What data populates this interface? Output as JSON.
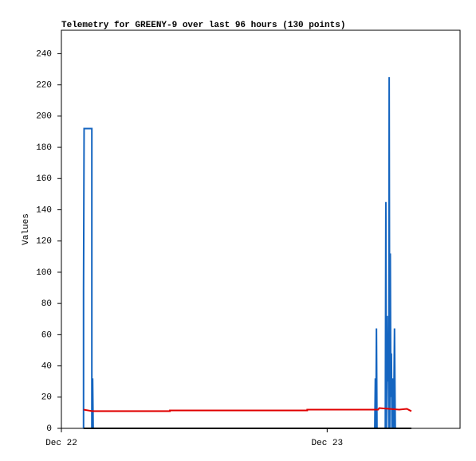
{
  "chart_data": {
    "type": "line",
    "title": "Telemetry for GREENY-9 over last 96 hours (130 points)",
    "y_label": "Values",
    "xlim": [
      0,
      36
    ],
    "xticks": [
      {
        "value": 0,
        "label": "Dec 22"
      },
      {
        "value": 24,
        "label": "Dec 23"
      }
    ],
    "ylim": [
      0,
      255
    ],
    "yticks": [
      0,
      20,
      40,
      60,
      80,
      100,
      120,
      140,
      160,
      180,
      200,
      220,
      240
    ],
    "grid": false,
    "series": [
      {
        "color": "#1565c0",
        "x": [
          2.0,
          2.0,
          2.05,
          2.75,
          2.75,
          2.82,
          2.87,
          28.3,
          28.35,
          28.4,
          28.45,
          28.5,
          29.25,
          29.3,
          29.35,
          29.42,
          29.47,
          29.52,
          29.57,
          29.6,
          29.65,
          29.7,
          29.75,
          29.8,
          29.85,
          29.9,
          29.95,
          30.0,
          30.08,
          30.15,
          30.2
        ],
        "values": [
          0,
          88,
          192,
          192,
          0,
          32,
          0,
          0,
          32,
          0,
          64,
          0,
          0,
          145,
          0,
          72,
          30,
          48,
          0,
          225,
          0,
          112,
          20,
          48,
          0,
          24,
          32,
          0,
          64,
          0,
          0
        ]
      },
      {
        "color": "#e00000",
        "x": [
          2.0,
          2.8,
          9.8,
          9.8,
          22.2,
          22.2,
          28.6,
          28.7,
          29.6,
          30.5,
          31.2,
          31.6
        ],
        "values": [
          12,
          11,
          11,
          11.5,
          11.5,
          12,
          12,
          13,
          12.5,
          12,
          12.5,
          11
        ]
      },
      {
        "color": "#000000",
        "x": [
          2.0,
          31.6
        ],
        "values": [
          0,
          0
        ]
      }
    ]
  }
}
